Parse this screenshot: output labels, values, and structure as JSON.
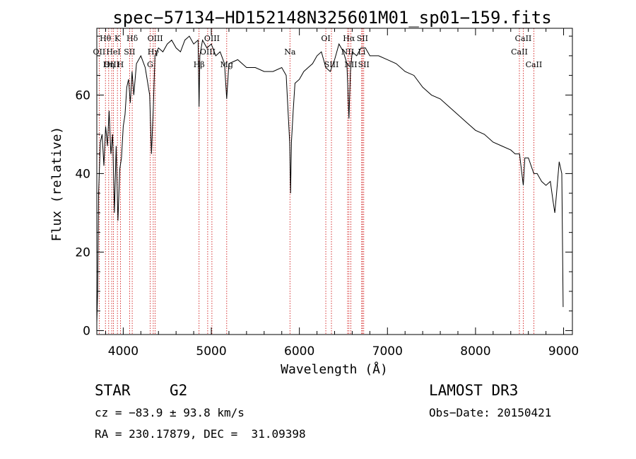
{
  "chart_data": {
    "type": "line",
    "title": "spec−57134−HD152148N325601M01_sp01−159.fits",
    "xlabel": "Wavelength (Å)",
    "ylabel": "Flux (relative)",
    "xlim": [
      3700,
      9100
    ],
    "ylim": [
      -1,
      77
    ],
    "xticks": [
      4000,
      5000,
      6000,
      7000,
      8000,
      9000
    ],
    "yticks": [
      0,
      20,
      40,
      60
    ],
    "grid": false,
    "series": [
      {
        "x": [
          3700,
          3710,
          3720,
          3740,
          3760,
          3780,
          3800,
          3820,
          3840,
          3860,
          3880,
          3900,
          3920,
          3940,
          3960,
          3980,
          4000,
          4020,
          4040,
          4060,
          4080,
          4100,
          4120,
          4150,
          4200,
          4250,
          4300,
          4320,
          4340,
          4360,
          4400,
          4450,
          4500,
          4550,
          4600,
          4650,
          4700,
          4750,
          4800,
          4850,
          4861,
          4870,
          4900,
          4950,
          5000,
          5050,
          5100,
          5150,
          5175,
          5200,
          5300,
          5400,
          5500,
          5600,
          5700,
          5800,
          5850,
          5890,
          5900,
          5910,
          5930,
          5950,
          6000,
          6050,
          6100,
          6150,
          6200,
          6250,
          6300,
          6350,
          6400,
          6450,
          6500,
          6540,
          6563,
          6580,
          6600,
          6650,
          6700,
          6750,
          6800,
          6900,
          7000,
          7100,
          7200,
          7300,
          7400,
          7500,
          7600,
          7700,
          7800,
          7900,
          8000,
          8100,
          8200,
          8300,
          8400,
          8450,
          8500,
          8542,
          8560,
          8600,
          8662,
          8700,
          8750,
          8800,
          8850,
          8880,
          8900,
          8920,
          8950,
          8980,
          8995
        ],
        "y": [
          2,
          10,
          35,
          48,
          50,
          42,
          52,
          47,
          56,
          45,
          50,
          30,
          47,
          28,
          41,
          44,
          52,
          55,
          62,
          64,
          58,
          66,
          60,
          68,
          70,
          67,
          60,
          45,
          56,
          70,
          72,
          71,
          73,
          74,
          72,
          71,
          74,
          75,
          73,
          74,
          57,
          70,
          74,
          72,
          73,
          70,
          71,
          68,
          59,
          68,
          69,
          67,
          67,
          66,
          66,
          67,
          65,
          48,
          35,
          48,
          56,
          63,
          64,
          66,
          67,
          68,
          70,
          71,
          67,
          66,
          69,
          73,
          71,
          68,
          54,
          66,
          71,
          70,
          72,
          72,
          70,
          70,
          69,
          68,
          66,
          65,
          62,
          60,
          59,
          57,
          55,
          53,
          51,
          50,
          48,
          47,
          46,
          45,
          45,
          37,
          44,
          44,
          40,
          40,
          38,
          37,
          38,
          33,
          30,
          35,
          43,
          40,
          6
        ]
      }
    ],
    "line_markers": [
      {
        "label": "Hθ",
        "wavelength": 3798,
        "row": 0
      },
      {
        "label": "OII",
        "wavelength": 3727,
        "row": 1
      },
      {
        "label": "OIII",
        "wavelength": 3869,
        "row": 2
      },
      {
        "label": "K",
        "wavelength": 3934,
        "row": 0
      },
      {
        "label": "HeI",
        "wavelength": 3889,
        "row": 1
      },
      {
        "label": "Hη",
        "wavelength": 3835,
        "row": 2
      },
      {
        "label": "Hδ",
        "wavelength": 4102,
        "row": 0
      },
      {
        "label": "SII",
        "wavelength": 4072,
        "row": 1
      },
      {
        "label": "H",
        "wavelength": 3968,
        "row": 2
      },
      {
        "label": "OIII",
        "wavelength": 4363,
        "row": 0
      },
      {
        "label": "Hγ",
        "wavelength": 4341,
        "row": 1
      },
      {
        "label": "G",
        "wavelength": 4305,
        "row": 2
      },
      {
        "label": "OIII",
        "wavelength": 5007,
        "row": 0
      },
      {
        "label": "OIII",
        "wavelength": 4959,
        "row": 1
      },
      {
        "label": "Hβ",
        "wavelength": 4861,
        "row": 2
      },
      {
        "label": "Mg",
        "wavelength": 5175,
        "row": 2
      },
      {
        "label": "Na",
        "wavelength": 5893,
        "row": 1
      },
      {
        "label": "OI",
        "wavelength": 6300,
        "row": 0
      },
      {
        "label": "SIII",
        "wavelength": 6364,
        "row": 2
      },
      {
        "label": "Hα",
        "wavelength": 6563,
        "row": 0
      },
      {
        "label": "NII",
        "wavelength": 6548,
        "row": 1
      },
      {
        "label": "NII",
        "wavelength": 6584,
        "row": 2
      },
      {
        "label": "SII",
        "wavelength": 6716,
        "row": 0
      },
      {
        "label": "Li",
        "wavelength": 6708,
        "row": 1
      },
      {
        "label": "SII",
        "wavelength": 6731,
        "row": 2
      },
      {
        "label": "CaII",
        "wavelength": 8542,
        "row": 0
      },
      {
        "label": "CaII",
        "wavelength": 8498,
        "row": 1
      },
      {
        "label": "CaII",
        "wavelength": 8662,
        "row": 2
      }
    ]
  },
  "info": {
    "class_label": "STAR",
    "subclass": "G2",
    "survey": "LAMOST DR3",
    "redshift_line": "cz = −83.9 ± 93.8 km/s",
    "obs_date": "Obs−Date: 20150421",
    "coords": "RA = 230.17879, DEC =  31.09398"
  },
  "colors": {
    "spectrum": "#000000",
    "line_marker": "#cc0000",
    "axes": "#000000"
  }
}
